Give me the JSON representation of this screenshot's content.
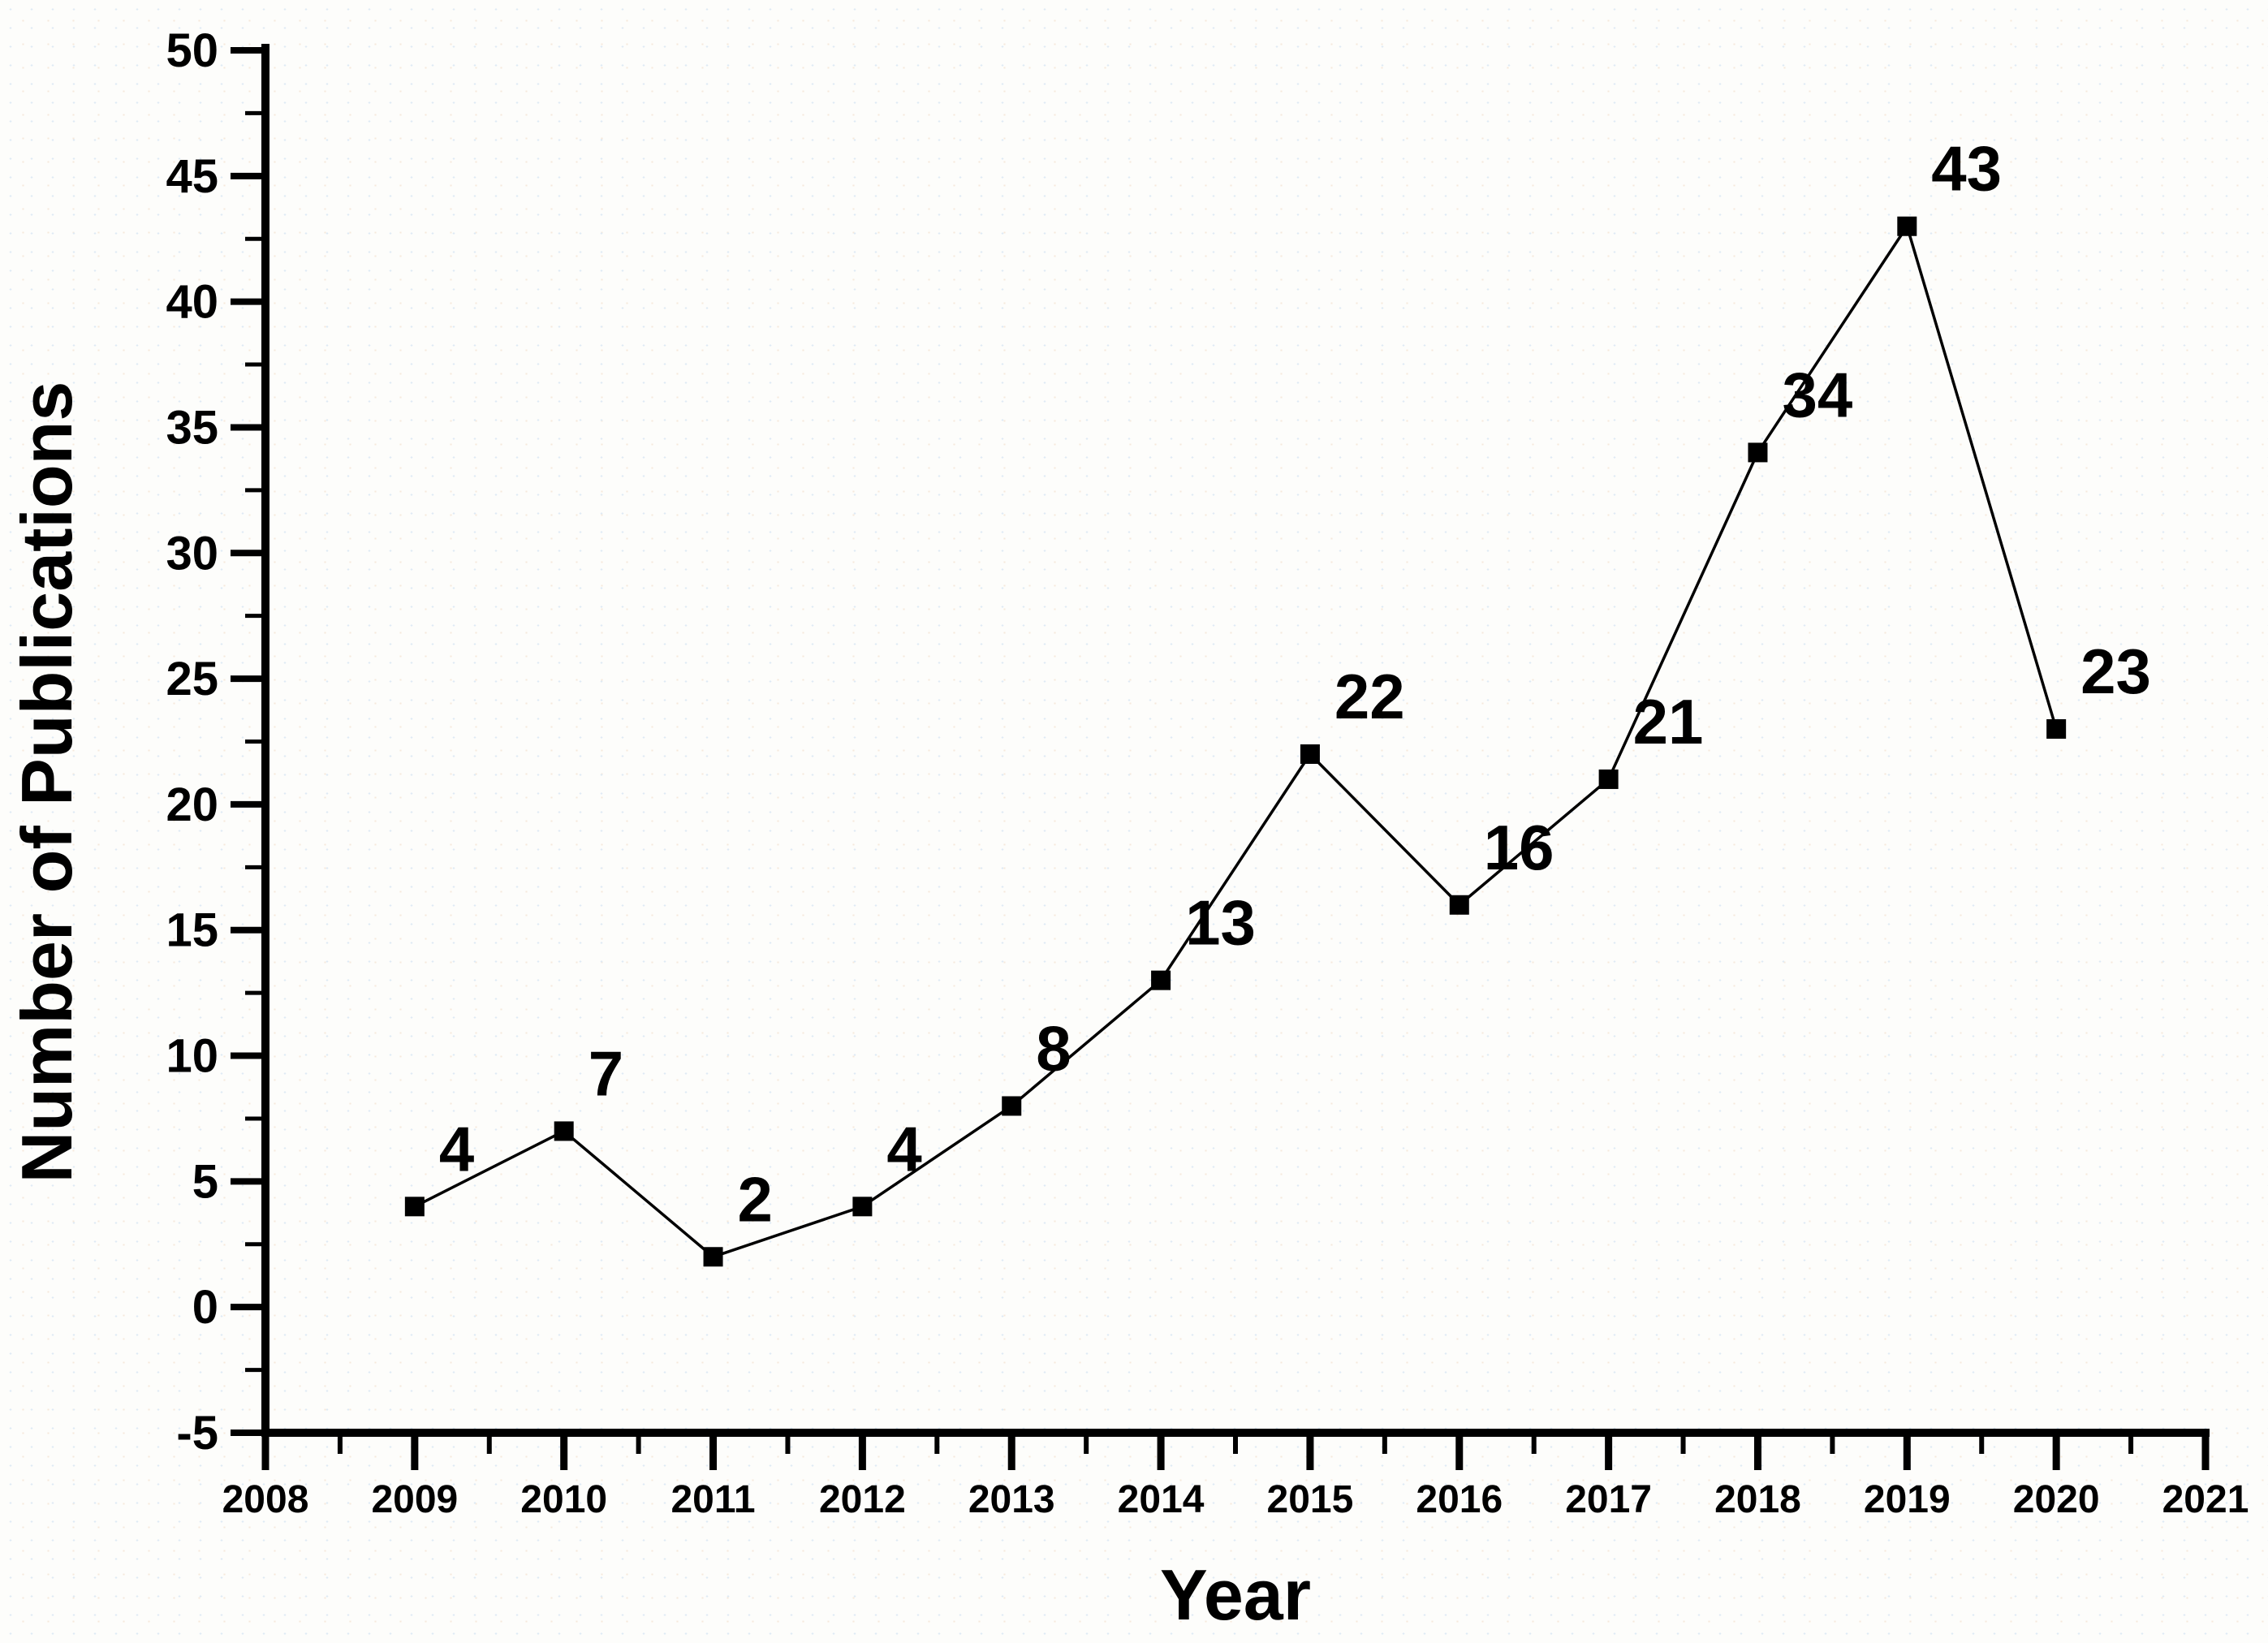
{
  "figure": {
    "background": "#fdfdfb",
    "ink": "#000000",
    "speckle_colors": [
      "#dfeaf4",
      "#f6e9dc"
    ]
  },
  "chart_data": {
    "type": "line",
    "title": "",
    "xlabel": "Year",
    "ylabel": "Number of Publications",
    "x": [
      2009,
      2010,
      2011,
      2012,
      2013,
      2014,
      2015,
      2016,
      2017,
      2018,
      2019,
      2020
    ],
    "series": [
      {
        "name": "Number of Publications",
        "values": [
          4,
          7,
          2,
          4,
          8,
          13,
          22,
          16,
          21,
          34,
          43,
          23
        ]
      }
    ],
    "point_labels": [
      "4",
      "7",
      "2",
      "4",
      "8",
      "13",
      "22",
      "16",
      "21",
      "34",
      "43",
      "23"
    ],
    "xlim": [
      2008,
      2021
    ],
    "ylim": [
      -5,
      50
    ],
    "x_major_ticks": [
      2008,
      2009,
      2010,
      2011,
      2012,
      2013,
      2014,
      2015,
      2016,
      2017,
      2018,
      2019,
      2020,
      2021
    ],
    "x_tick_labels": [
      "2008",
      "2009",
      "2010",
      "2011",
      "2012",
      "2013",
      "2014",
      "2015",
      "2016",
      "2017",
      "2018",
      "2019",
      "2020",
      "2021"
    ],
    "x_minor_step": 0.5,
    "y_major_ticks": [
      -5,
      0,
      5,
      10,
      15,
      20,
      25,
      30,
      35,
      40,
      45,
      50
    ],
    "y_tick_labels": [
      "-5",
      "0",
      "5",
      "10",
      "15",
      "20",
      "25",
      "30",
      "35",
      "40",
      "45",
      "50"
    ],
    "y_minor_step": 2.5,
    "grid": false,
    "legend": "none",
    "tick_direction": "out",
    "marker": "filled-square",
    "line_color": "#000000",
    "marker_color": "#000000",
    "label_color": "#000000"
  }
}
